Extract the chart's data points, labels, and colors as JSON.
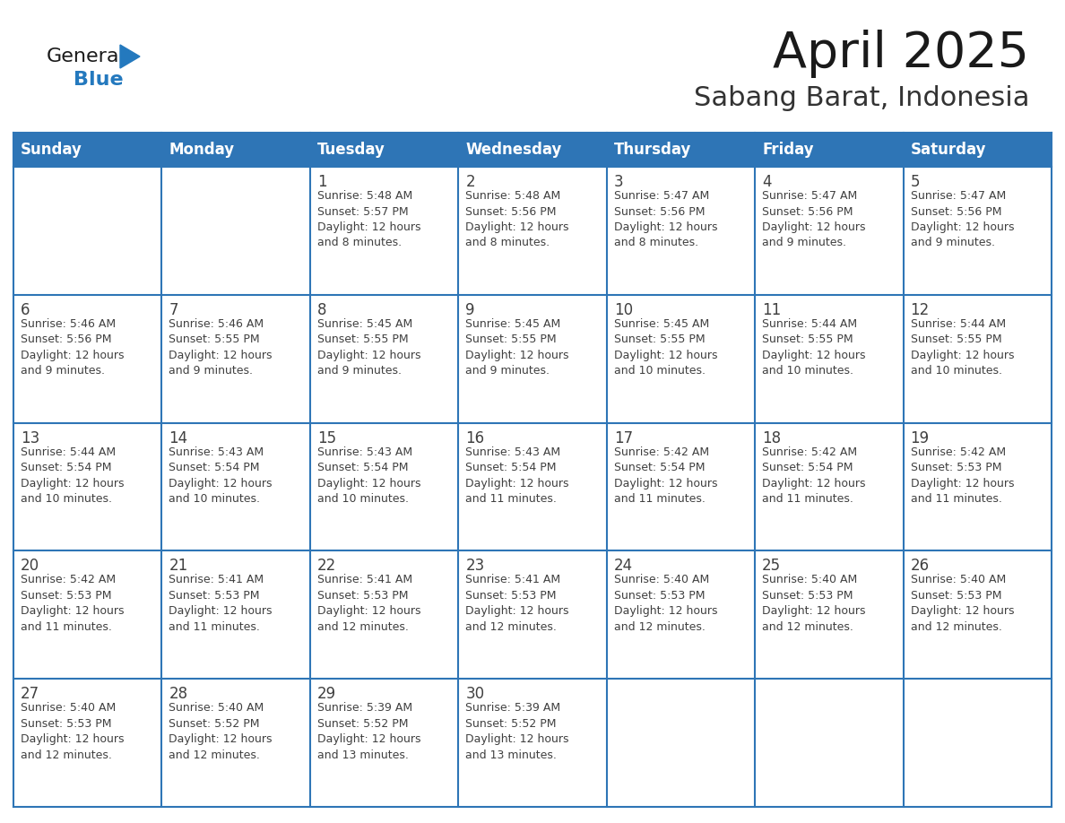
{
  "title": "April 2025",
  "subtitle": "Sabang Barat, Indonesia",
  "days_of_week": [
    "Sunday",
    "Monday",
    "Tuesday",
    "Wednesday",
    "Thursday",
    "Friday",
    "Saturday"
  ],
  "header_bg": "#2E75B6",
  "header_text": "#FFFFFF",
  "grid_line_color": "#2E75B6",
  "text_color": "#404040",
  "title_color": "#1a1a1a",
  "subtitle_color": "#333333",
  "logo_color_general": "#1a1a1a",
  "logo_color_blue": "#2479BE",
  "logo_triangle_color": "#2479BE",
  "calendar_data": [
    [
      {
        "day": null,
        "info": null
      },
      {
        "day": null,
        "info": null
      },
      {
        "day": 1,
        "info": "Sunrise: 5:48 AM\nSunset: 5:57 PM\nDaylight: 12 hours\nand 8 minutes."
      },
      {
        "day": 2,
        "info": "Sunrise: 5:48 AM\nSunset: 5:56 PM\nDaylight: 12 hours\nand 8 minutes."
      },
      {
        "day": 3,
        "info": "Sunrise: 5:47 AM\nSunset: 5:56 PM\nDaylight: 12 hours\nand 8 minutes."
      },
      {
        "day": 4,
        "info": "Sunrise: 5:47 AM\nSunset: 5:56 PM\nDaylight: 12 hours\nand 9 minutes."
      },
      {
        "day": 5,
        "info": "Sunrise: 5:47 AM\nSunset: 5:56 PM\nDaylight: 12 hours\nand 9 minutes."
      }
    ],
    [
      {
        "day": 6,
        "info": "Sunrise: 5:46 AM\nSunset: 5:56 PM\nDaylight: 12 hours\nand 9 minutes."
      },
      {
        "day": 7,
        "info": "Sunrise: 5:46 AM\nSunset: 5:55 PM\nDaylight: 12 hours\nand 9 minutes."
      },
      {
        "day": 8,
        "info": "Sunrise: 5:45 AM\nSunset: 5:55 PM\nDaylight: 12 hours\nand 9 minutes."
      },
      {
        "day": 9,
        "info": "Sunrise: 5:45 AM\nSunset: 5:55 PM\nDaylight: 12 hours\nand 9 minutes."
      },
      {
        "day": 10,
        "info": "Sunrise: 5:45 AM\nSunset: 5:55 PM\nDaylight: 12 hours\nand 10 minutes."
      },
      {
        "day": 11,
        "info": "Sunrise: 5:44 AM\nSunset: 5:55 PM\nDaylight: 12 hours\nand 10 minutes."
      },
      {
        "day": 12,
        "info": "Sunrise: 5:44 AM\nSunset: 5:55 PM\nDaylight: 12 hours\nand 10 minutes."
      }
    ],
    [
      {
        "day": 13,
        "info": "Sunrise: 5:44 AM\nSunset: 5:54 PM\nDaylight: 12 hours\nand 10 minutes."
      },
      {
        "day": 14,
        "info": "Sunrise: 5:43 AM\nSunset: 5:54 PM\nDaylight: 12 hours\nand 10 minutes."
      },
      {
        "day": 15,
        "info": "Sunrise: 5:43 AM\nSunset: 5:54 PM\nDaylight: 12 hours\nand 10 minutes."
      },
      {
        "day": 16,
        "info": "Sunrise: 5:43 AM\nSunset: 5:54 PM\nDaylight: 12 hours\nand 11 minutes."
      },
      {
        "day": 17,
        "info": "Sunrise: 5:42 AM\nSunset: 5:54 PM\nDaylight: 12 hours\nand 11 minutes."
      },
      {
        "day": 18,
        "info": "Sunrise: 5:42 AM\nSunset: 5:54 PM\nDaylight: 12 hours\nand 11 minutes."
      },
      {
        "day": 19,
        "info": "Sunrise: 5:42 AM\nSunset: 5:53 PM\nDaylight: 12 hours\nand 11 minutes."
      }
    ],
    [
      {
        "day": 20,
        "info": "Sunrise: 5:42 AM\nSunset: 5:53 PM\nDaylight: 12 hours\nand 11 minutes."
      },
      {
        "day": 21,
        "info": "Sunrise: 5:41 AM\nSunset: 5:53 PM\nDaylight: 12 hours\nand 11 minutes."
      },
      {
        "day": 22,
        "info": "Sunrise: 5:41 AM\nSunset: 5:53 PM\nDaylight: 12 hours\nand 12 minutes."
      },
      {
        "day": 23,
        "info": "Sunrise: 5:41 AM\nSunset: 5:53 PM\nDaylight: 12 hours\nand 12 minutes."
      },
      {
        "day": 24,
        "info": "Sunrise: 5:40 AM\nSunset: 5:53 PM\nDaylight: 12 hours\nand 12 minutes."
      },
      {
        "day": 25,
        "info": "Sunrise: 5:40 AM\nSunset: 5:53 PM\nDaylight: 12 hours\nand 12 minutes."
      },
      {
        "day": 26,
        "info": "Sunrise: 5:40 AM\nSunset: 5:53 PM\nDaylight: 12 hours\nand 12 minutes."
      }
    ],
    [
      {
        "day": 27,
        "info": "Sunrise: 5:40 AM\nSunset: 5:53 PM\nDaylight: 12 hours\nand 12 minutes."
      },
      {
        "day": 28,
        "info": "Sunrise: 5:40 AM\nSunset: 5:52 PM\nDaylight: 12 hours\nand 12 minutes."
      },
      {
        "day": 29,
        "info": "Sunrise: 5:39 AM\nSunset: 5:52 PM\nDaylight: 12 hours\nand 13 minutes."
      },
      {
        "day": 30,
        "info": "Sunrise: 5:39 AM\nSunset: 5:52 PM\nDaylight: 12 hours\nand 13 minutes."
      },
      {
        "day": null,
        "info": null
      },
      {
        "day": null,
        "info": null
      },
      {
        "day": null,
        "info": null
      }
    ]
  ]
}
